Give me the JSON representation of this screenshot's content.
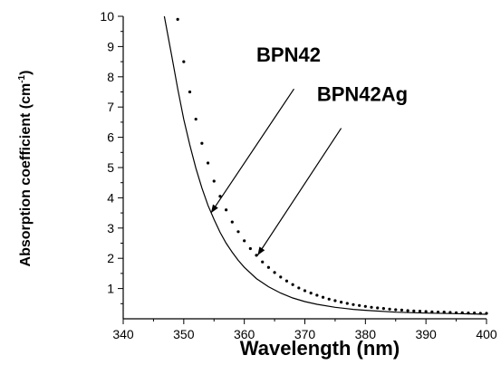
{
  "chart_data": {
    "type": "line",
    "title": "",
    "xlabel": "Wavelength (nm)",
    "ylabel_main": "Absorption coefficient (cm",
    "ylabel_sup": "-1",
    "ylabel_close": ")",
    "xlim": [
      340,
      400
    ],
    "ylim": [
      0,
      10
    ],
    "xticks": [
      340,
      350,
      360,
      370,
      380,
      390,
      400
    ],
    "yticks": [
      1,
      2,
      3,
      4,
      5,
      6,
      7,
      8,
      9,
      10
    ],
    "grid": false,
    "series": [
      {
        "name": "BPN42",
        "style": "solid",
        "x": [
          346.8,
          348,
          349,
          350,
          351,
          352,
          353,
          354,
          355,
          356,
          357,
          358,
          359,
          360,
          362,
          364,
          366,
          368,
          370,
          372,
          375,
          378,
          380,
          385,
          390,
          395,
          400
        ],
        "y": [
          10.0,
          8.7,
          7.6,
          6.6,
          5.75,
          4.98,
          4.32,
          3.75,
          3.28,
          2.86,
          2.5,
          2.2,
          1.93,
          1.7,
          1.33,
          1.06,
          0.85,
          0.69,
          0.57,
          0.48,
          0.38,
          0.31,
          0.28,
          0.22,
          0.19,
          0.17,
          0.15
        ]
      },
      {
        "name": "BPN42Ag",
        "style": "dotted",
        "x": [
          349,
          350,
          351,
          352,
          353,
          354,
          355,
          356,
          357,
          358,
          359,
          360,
          361,
          362,
          363,
          364,
          365,
          366,
          367,
          368,
          369,
          370,
          371,
          372,
          373,
          374,
          375,
          376,
          377,
          378,
          379,
          380,
          381,
          382,
          383,
          384,
          385,
          386,
          387,
          388,
          389,
          390,
          391,
          392,
          393,
          394,
          395,
          396,
          397,
          398,
          399,
          400
        ],
        "y": [
          9.9,
          8.5,
          7.5,
          6.6,
          5.8,
          5.15,
          4.55,
          4.05,
          3.6,
          3.2,
          2.88,
          2.58,
          2.32,
          2.1,
          1.88,
          1.7,
          1.53,
          1.38,
          1.25,
          1.13,
          1.02,
          0.93,
          0.85,
          0.78,
          0.71,
          0.65,
          0.6,
          0.55,
          0.51,
          0.47,
          0.44,
          0.41,
          0.38,
          0.36,
          0.34,
          0.32,
          0.3,
          0.29,
          0.27,
          0.26,
          0.25,
          0.24,
          0.23,
          0.22,
          0.22,
          0.21,
          0.2,
          0.2,
          0.19,
          0.19,
          0.18,
          0.18
        ]
      }
    ],
    "annotations": [
      {
        "text": "BPN42",
        "text_x": 362,
        "text_y": 8.5,
        "from": [
          368.2,
          7.6
        ],
        "to": [
          354.5,
          3.5
        ]
      },
      {
        "text": "BPN42Ag",
        "text_x": 372,
        "text_y": 7.2,
        "from": [
          376,
          6.3
        ],
        "to": [
          362.2,
          2.1
        ]
      }
    ]
  }
}
